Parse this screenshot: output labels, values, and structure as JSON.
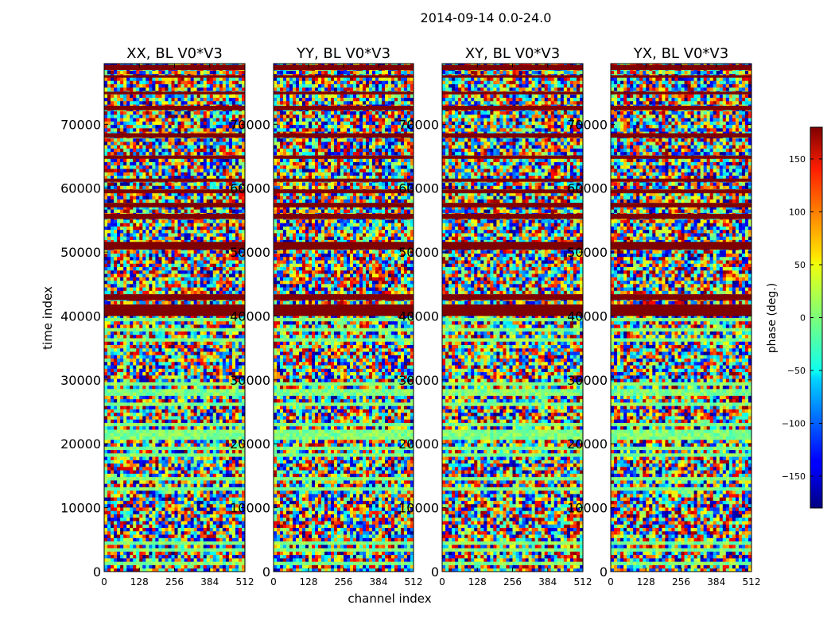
{
  "figure": {
    "suptitle": "2014-09-14 0.0-24.0",
    "xlabel": "channel index",
    "ylabel": "time index"
  },
  "chart_data": {
    "type": "heatmap",
    "title": "2014-09-14 0.0-24.0",
    "xlabel": "channel index",
    "ylabel": "time index",
    "xlim": [
      0,
      512
    ],
    "ylim": [
      0,
      79500
    ],
    "x_ticks": [
      0,
      128,
      256,
      384,
      512
    ],
    "y_ticks": [
      0,
      10000,
      20000,
      30000,
      40000,
      50000,
      60000,
      70000
    ],
    "x_tick_labels": [
      "0",
      "128",
      "256",
      "384",
      "512"
    ],
    "y_tick_labels": [
      "0",
      "10000",
      "20000",
      "30000",
      "40000",
      "50000",
      "60000",
      "70000"
    ],
    "panels": [
      {
        "title": "XX, BL V0*V3",
        "polarization": "XX"
      },
      {
        "title": "YY, BL V0*V3",
        "polarization": "YY"
      },
      {
        "title": "XY, BL V0*V3",
        "polarization": "XY"
      },
      {
        "title": "YX, BL V0*V3",
        "polarization": "YX"
      }
    ],
    "colorbar": {
      "label": "phase (deg.)",
      "range": [
        -180,
        180
      ],
      "ticks": [
        -150,
        -100,
        -50,
        0,
        50,
        100,
        150
      ],
      "tick_labels": [
        "−150",
        "−100",
        "−50",
        "0",
        "50",
        "100",
        "150"
      ],
      "colormap": "jet"
    },
    "flagged_time_ranges": [
      [
        40000,
        41800
      ],
      [
        42500,
        43400
      ],
      [
        50400,
        51600
      ],
      [
        55200,
        56000
      ],
      [
        57000,
        57700
      ],
      [
        59200,
        59800
      ],
      [
        61000,
        61500
      ],
      [
        64600,
        65100
      ],
      [
        67900,
        68600
      ],
      [
        72200,
        72900
      ],
      [
        74700,
        75100
      ],
      [
        77300,
        77700
      ],
      [
        78500,
        79300
      ]
    ],
    "smooth_time_ranges": [
      [
        1200,
        1500
      ],
      [
        3200,
        3500
      ],
      [
        4300,
        4700
      ],
      [
        7900,
        8200
      ],
      [
        10400,
        10800
      ],
      [
        12800,
        13200
      ],
      [
        14300,
        14600
      ],
      [
        15800,
        16100
      ],
      [
        16700,
        17000
      ],
      [
        18000,
        18300
      ],
      [
        19300,
        19700
      ],
      [
        20500,
        22200
      ],
      [
        23000,
        23300
      ],
      [
        24700,
        25000
      ],
      [
        26200,
        26500
      ],
      [
        27600,
        28600
      ],
      [
        29400,
        29700
      ],
      [
        31200,
        31500
      ],
      [
        33200,
        33500
      ],
      [
        34800,
        35100
      ],
      [
        36300,
        36600
      ],
      [
        37700,
        38000
      ],
      [
        39200,
        39500
      ]
    ]
  }
}
